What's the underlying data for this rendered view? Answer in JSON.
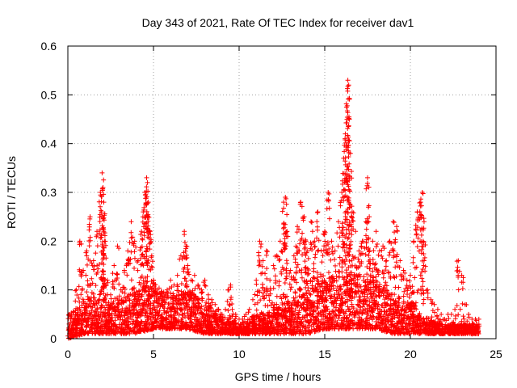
{
  "chart_data": {
    "type": "scatter",
    "title": "Day 343 of 2021, Rate Of TEC Index for receiver dav1",
    "xlabel": "GPS time / hours",
    "ylabel": "ROTI / TECUs",
    "xlim": [
      0,
      25
    ],
    "ylim": [
      0,
      0.6
    ],
    "x_ticks": [
      0,
      5,
      10,
      15,
      20,
      25
    ],
    "y_ticks": [
      0,
      0.1,
      0.2,
      0.3,
      0.4,
      0.5,
      0.6
    ],
    "x_tick_labels": [
      "0",
      "5",
      "10",
      "15",
      "20",
      "25"
    ],
    "y_tick_labels": [
      "0",
      "0.1",
      "0.2",
      "0.3",
      "0.4",
      "0.5",
      "0.6"
    ],
    "grid": true,
    "marker": "plus",
    "series": [
      {
        "color": "#ff0000",
        "x": [
          0.1,
          0.3,
          0.5,
          0.7,
          0.9,
          1.1,
          1.3,
          1.5,
          1.7,
          1.9,
          2.0,
          2.05,
          2.1,
          2.15,
          2.3,
          2.5,
          2.7,
          2.9,
          3.1,
          3.3,
          3.5,
          3.7,
          3.9,
          4.1,
          4.3,
          4.4,
          4.5,
          4.6,
          4.65,
          4.7,
          4.8,
          4.9,
          5.0,
          5.2,
          5.4,
          5.6,
          5.8,
          6.0,
          6.2,
          6.4,
          6.6,
          6.8,
          6.9,
          7.0,
          7.2,
          7.4,
          7.6,
          7.8,
          8.0,
          8.2,
          8.4,
          8.6,
          8.8,
          9.0,
          9.2,
          9.4,
          9.5,
          9.6,
          9.8,
          10.0,
          10.2,
          10.4,
          10.6,
          10.8,
          11.0,
          11.2,
          11.4,
          11.6,
          11.8,
          12.0,
          12.2,
          12.4,
          12.6,
          12.7,
          12.8,
          13.0,
          13.2,
          13.4,
          13.6,
          13.8,
          13.9,
          14.0,
          14.2,
          14.4,
          14.6,
          14.8,
          15.0,
          15.2,
          15.4,
          15.6,
          15.8,
          16.0,
          16.1,
          16.2,
          16.3,
          16.35,
          16.4,
          16.5,
          16.6,
          16.8,
          17.0,
          17.2,
          17.4,
          17.5,
          17.6,
          17.8,
          18.0,
          18.2,
          18.4,
          18.6,
          18.8,
          19.0,
          19.2,
          19.4,
          19.6,
          19.8,
          20.0,
          20.2,
          20.4,
          20.6,
          20.7,
          20.8,
          21.0,
          21.2,
          21.4,
          21.6,
          21.8,
          22.0,
          22.2,
          22.4,
          22.6,
          22.8,
          23.0,
          23.2,
          23.4,
          23.6,
          23.8,
          24.0
        ],
        "y": [
          0.05,
          0.04,
          0.1,
          0.2,
          0.14,
          0.18,
          0.25,
          0.16,
          0.22,
          0.3,
          0.34,
          0.31,
          0.28,
          0.2,
          0.12,
          0.09,
          0.15,
          0.19,
          0.1,
          0.14,
          0.18,
          0.24,
          0.2,
          0.16,
          0.22,
          0.26,
          0.3,
          0.33,
          0.32,
          0.28,
          0.22,
          0.17,
          0.12,
          0.1,
          0.09,
          0.08,
          0.1,
          0.12,
          0.11,
          0.13,
          0.17,
          0.22,
          0.19,
          0.15,
          0.12,
          0.13,
          0.11,
          0.1,
          0.12,
          0.09,
          0.08,
          0.07,
          0.06,
          0.05,
          0.06,
          0.1,
          0.11,
          0.06,
          0.05,
          0.04,
          0.04,
          0.05,
          0.06,
          0.08,
          0.12,
          0.2,
          0.16,
          0.18,
          0.12,
          0.15,
          0.17,
          0.2,
          0.28,
          0.29,
          0.22,
          0.14,
          0.17,
          0.23,
          0.28,
          0.25,
          0.2,
          0.18,
          0.24,
          0.2,
          0.26,
          0.18,
          0.22,
          0.3,
          0.2,
          0.18,
          0.24,
          0.3,
          0.37,
          0.42,
          0.45,
          0.53,
          0.52,
          0.38,
          0.26,
          0.22,
          0.18,
          0.2,
          0.24,
          0.33,
          0.25,
          0.2,
          0.22,
          0.18,
          0.19,
          0.16,
          0.2,
          0.24,
          0.23,
          0.16,
          0.14,
          0.12,
          0.13,
          0.2,
          0.26,
          0.28,
          0.3,
          0.24,
          0.1,
          0.08,
          0.07,
          0.06,
          0.05,
          0.04,
          0.05,
          0.05,
          0.06,
          0.16,
          0.13,
          0.07,
          0.05,
          0.04,
          0.04,
          0.04
        ],
        "background_band": {
          "x": [
            0,
            1,
            2,
            3,
            4,
            5,
            6,
            7,
            8,
            9,
            10,
            11,
            12,
            13,
            14,
            15,
            16,
            17,
            18,
            19,
            20,
            21,
            22,
            23,
            24
          ],
          "y_low": [
            0.0,
            0.01,
            0.01,
            0.01,
            0.01,
            0.02,
            0.02,
            0.02,
            0.01,
            0.01,
            0.01,
            0.01,
            0.01,
            0.01,
            0.01,
            0.02,
            0.02,
            0.02,
            0.02,
            0.01,
            0.01,
            0.01,
            0.01,
            0.01,
            0.01
          ],
          "y_high": [
            0.05,
            0.08,
            0.09,
            0.08,
            0.1,
            0.12,
            0.09,
            0.1,
            0.08,
            0.05,
            0.03,
            0.05,
            0.06,
            0.08,
            0.1,
            0.12,
            0.14,
            0.13,
            0.12,
            0.09,
            0.08,
            0.04,
            0.03,
            0.03,
            0.03
          ]
        }
      }
    ]
  }
}
